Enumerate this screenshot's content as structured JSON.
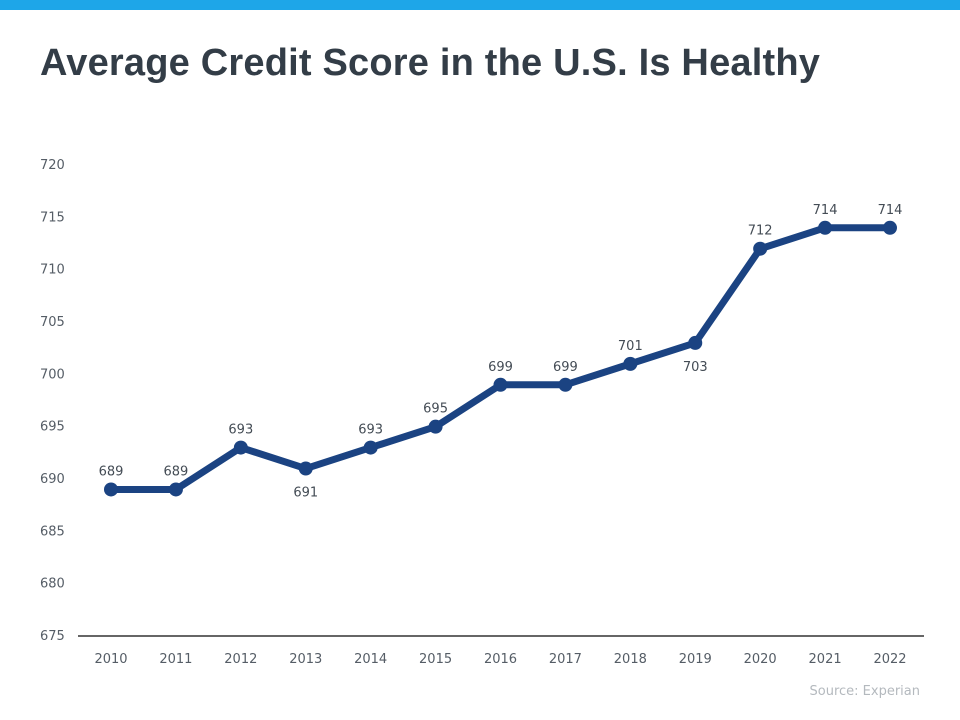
{
  "header": {
    "title": "Average Credit Score in the U.S. Is Healthy",
    "accent_color": "#1ea6e8"
  },
  "footer": {
    "source": "Source: Experian"
  },
  "chart_data": {
    "type": "line",
    "title": "Average Credit Score in the U.S. Is Healthy",
    "xlabel": "",
    "ylabel": "",
    "categories": [
      "2010",
      "2011",
      "2012",
      "2013",
      "2014",
      "2015",
      "2016",
      "2017",
      "2018",
      "2019",
      "2020",
      "2021",
      "2022"
    ],
    "series": [
      {
        "values": [
          689,
          689,
          693,
          691,
          693,
          695,
          699,
          699,
          701,
          703,
          712,
          714,
          714
        ],
        "color": "#1b4382",
        "label_positions": [
          "above",
          "above",
          "above",
          "below",
          "above",
          "above",
          "above",
          "above",
          "above",
          "below",
          "above",
          "above",
          "above"
        ]
      }
    ],
    "ylim": [
      675,
      720
    ],
    "yticks": [
      675,
      680,
      685,
      690,
      695,
      700,
      705,
      710,
      715,
      720
    ],
    "grid": false,
    "legend": "none",
    "axis_color": "#333333"
  }
}
